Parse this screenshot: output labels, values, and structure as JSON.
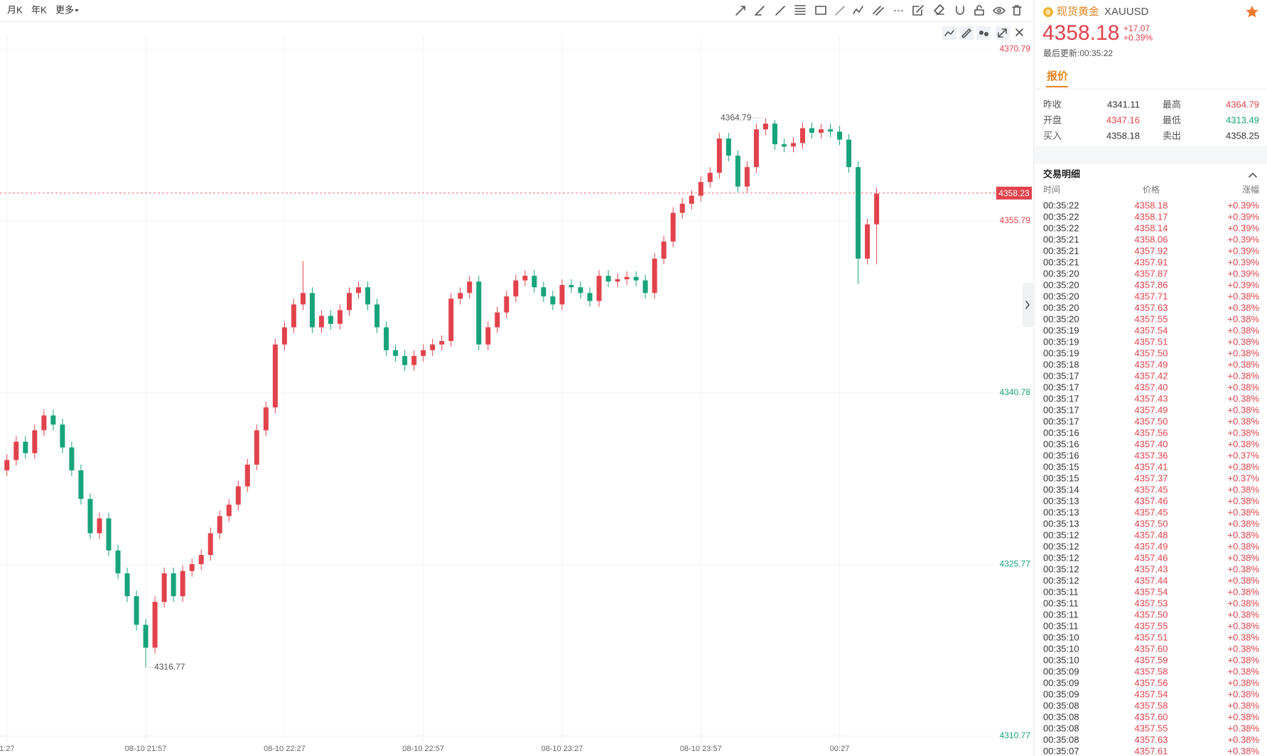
{
  "toolbar": {
    "periods": [
      "月K",
      "年K"
    ],
    "more": "更多"
  },
  "chart_data": {
    "type": "candlestick",
    "open": [
      4334.0,
      4334.9,
      4336.5,
      4335.5,
      4337.5,
      4338.8,
      4338.0,
      4336.0,
      4334.0,
      4331.5,
      4328.5,
      4329.8,
      4327.0,
      4325.0,
      4323.0,
      4320.5,
      4318.5,
      4322.5,
      4325.0,
      4323.0,
      4325.2,
      4325.8,
      4326.6,
      4328.5,
      4330.0,
      4331.0,
      4332.6,
      4334.5,
      4337.5,
      4339.5,
      4345.0,
      4346.5,
      4348.5,
      4349.5,
      4346.5,
      4347.5,
      4346.8,
      4348.0,
      4349.5,
      4350.0,
      4348.5,
      4346.5,
      4344.5,
      4344.0,
      4343.2,
      4344.0,
      4344.5,
      4345.0,
      4345.3,
      4349.0,
      4349.5,
      4350.5,
      4345.0,
      4346.5,
      4347.8,
      4349.2,
      4350.6,
      4351.0,
      4350.0,
      4349.2,
      4348.5,
      4350.2,
      4350.0,
      4349.5,
      4348.8,
      4351.0,
      4350.5,
      4350.7,
      4350.9,
      4350.6,
      4349.5,
      4352.5,
      4354.0,
      4356.5,
      4357.3,
      4358.0,
      4359.2,
      4360.0,
      4363.0,
      4361.5,
      4358.8,
      4360.5,
      4363.8,
      4364.3,
      4362.5,
      4362.3,
      4362.6,
      4363.9,
      4363.5,
      4363.8,
      4363.6,
      4362.9,
      4360.5,
      4352.5,
      4355.5
    ],
    "high": [
      4335.4,
      4337.0,
      4337.0,
      4338.0,
      4339.3,
      4339.3,
      4338.5,
      4336.5,
      4334.5,
      4332.0,
      4330.3,
      4330.3,
      4327.5,
      4325.5,
      4323.5,
      4321.0,
      4323.0,
      4325.5,
      4325.5,
      4325.7,
      4326.3,
      4327.1,
      4329.0,
      4330.5,
      4331.5,
      4333.1,
      4335.0,
      4338.0,
      4340.0,
      4345.5,
      4347.0,
      4349.0,
      4352.3,
      4350.0,
      4348.0,
      4348.0,
      4348.5,
      4350.0,
      4350.5,
      4350.5,
      4349.0,
      4347.0,
      4345.0,
      4344.5,
      4344.5,
      4345.0,
      4345.5,
      4345.8,
      4349.5,
      4350.0,
      4351.0,
      4351.0,
      4347.0,
      4348.3,
      4349.7,
      4351.1,
      4351.5,
      4351.5,
      4350.5,
      4349.7,
      4350.7,
      4350.7,
      4350.5,
      4350.0,
      4351.5,
      4351.5,
      4351.2,
      4351.4,
      4351.4,
      4351.1,
      4353.0,
      4354.5,
      4357.0,
      4357.8,
      4358.5,
      4359.7,
      4360.5,
      4363.5,
      4363.5,
      4362.0,
      4361.0,
      4364.3,
      4364.79,
      4364.6,
      4363.0,
      4363.1,
      4364.4,
      4364.4,
      4364.3,
      4364.3,
      4364.1,
      4363.4,
      4361.0,
      4356.0,
      4358.7
    ],
    "low": [
      4333.5,
      4334.4,
      4335.0,
      4335.0,
      4337.0,
      4337.5,
      4335.5,
      4333.5,
      4331.0,
      4328.0,
      4328.0,
      4326.5,
      4324.5,
      4322.5,
      4320.0,
      4316.77,
      4318.0,
      4322.0,
      4322.5,
      4322.5,
      4324.7,
      4325.3,
      4326.1,
      4328.0,
      4329.5,
      4330.5,
      4332.1,
      4334.0,
      4337.0,
      4339.0,
      4344.5,
      4346.0,
      4348.0,
      4346.0,
      4346.0,
      4346.3,
      4346.3,
      4347.5,
      4349.0,
      4348.0,
      4346.0,
      4344.0,
      4343.5,
      4342.7,
      4342.7,
      4343.5,
      4344.0,
      4344.5,
      4344.8,
      4348.5,
      4349.0,
      4344.5,
      4344.5,
      4346.0,
      4347.3,
      4348.7,
      4350.1,
      4349.5,
      4348.7,
      4348.0,
      4348.0,
      4349.5,
      4349.0,
      4348.3,
      4348.3,
      4350.0,
      4350.0,
      4350.2,
      4350.1,
      4349.0,
      4349.0,
      4352.0,
      4353.5,
      4356.0,
      4356.8,
      4357.5,
      4358.7,
      4359.5,
      4361.0,
      4358.3,
      4358.3,
      4360.0,
      4363.3,
      4362.0,
      4361.8,
      4361.8,
      4362.1,
      4363.0,
      4363.0,
      4363.1,
      4362.4,
      4360.0,
      4350.3,
      4352.0,
      4352.0
    ],
    "close": [
      4334.9,
      4336.5,
      4335.5,
      4337.5,
      4338.8,
      4338.0,
      4336.0,
      4334.0,
      4331.5,
      4328.5,
      4329.8,
      4327.0,
      4325.0,
      4323.0,
      4320.5,
      4318.5,
      4322.5,
      4325.0,
      4323.0,
      4325.2,
      4325.8,
      4326.6,
      4328.5,
      4330.0,
      4331.0,
      4332.6,
      4334.5,
      4337.5,
      4339.5,
      4345.0,
      4346.5,
      4348.5,
      4349.5,
      4346.5,
      4347.5,
      4346.8,
      4348.0,
      4349.5,
      4350.0,
      4348.5,
      4346.5,
      4344.5,
      4344.0,
      4343.2,
      4344.0,
      4344.5,
      4345.0,
      4345.3,
      4349.0,
      4349.5,
      4350.5,
      4345.0,
      4346.5,
      4347.8,
      4349.2,
      4350.6,
      4351.0,
      4350.0,
      4349.2,
      4348.5,
      4350.2,
      4350.0,
      4349.5,
      4348.8,
      4351.0,
      4350.5,
      4350.7,
      4350.9,
      4350.6,
      4349.5,
      4352.5,
      4354.0,
      4356.5,
      4357.3,
      4358.0,
      4359.2,
      4360.0,
      4363.0,
      4361.5,
      4358.8,
      4360.5,
      4363.8,
      4364.3,
      4362.5,
      4362.3,
      4362.6,
      4363.9,
      4363.5,
      4363.8,
      4363.6,
      4362.9,
      4360.5,
      4352.5,
      4355.5,
      4358.18
    ],
    "up_color": "#e2424c",
    "down_color": "#17a37b",
    "xlim": [
      -0.75,
      106.7
    ],
    "xticks": [
      {
        "value": 0,
        "label": "1:27"
      },
      {
        "value": 15,
        "label": "08-10 21:57"
      },
      {
        "value": 30,
        "label": "08-10 22:27"
      },
      {
        "value": 45,
        "label": "08-10 22:57"
      },
      {
        "value": 60,
        "label": "08-10 23:27"
      },
      {
        "value": 75,
        "label": "08-10 23:57"
      },
      {
        "value": 90,
        "label": "00:27"
      }
    ],
    "ylim": [
      4310.3,
      4372
    ],
    "yticks": [
      4310.77,
      4325.77,
      4340.78,
      4355.79,
      4370.79
    ],
    "ytick_colors": [
      "#17a37b",
      "#17a37b",
      "#17a37b",
      "#e2424c",
      "#e2424c"
    ],
    "grid": true,
    "last_price": 4358.23,
    "max_label": 4364.79,
    "min_label": 4316.77
  },
  "panel": {
    "name": "现货黄金",
    "symbol": "XAUUSD",
    "price": "4358.18",
    "change": "+17.07",
    "change_pct": "+0.39%",
    "updated": "最后更新:00:35:22",
    "tab": "报价",
    "quotes": [
      [
        "昨收",
        "4341.11",
        "最高",
        "4364.79"
      ],
      [
        "开盘",
        "4347.16",
        "最低",
        "4313.49"
      ],
      [
        "买入",
        "4358.18",
        "卖出",
        "4358.25"
      ]
    ],
    "trades_title": "交易明细",
    "trades_headers": [
      "时间",
      "价格",
      "涨幅"
    ],
    "trades": [
      [
        "00:35:22",
        "4358.18",
        "+0.39%"
      ],
      [
        "00:35:22",
        "4358.17",
        "+0.39%"
      ],
      [
        "00:35:22",
        "4358.14",
        "+0.39%"
      ],
      [
        "00:35:21",
        "4358.06",
        "+0.39%"
      ],
      [
        "00:35:21",
        "4357.92",
        "+0.39%"
      ],
      [
        "00:35:21",
        "4357.91",
        "+0.39%"
      ],
      [
        "00:35:20",
        "4357.87",
        "+0.39%"
      ],
      [
        "00:35:20",
        "4357.86",
        "+0.39%"
      ],
      [
        "00:35:20",
        "4357.71",
        "+0.38%"
      ],
      [
        "00:35:20",
        "4357.63",
        "+0.38%"
      ],
      [
        "00:35:20",
        "4357.55",
        "+0.38%"
      ],
      [
        "00:35:19",
        "4357.54",
        "+0.38%"
      ],
      [
        "00:35:19",
        "4357.51",
        "+0.38%"
      ],
      [
        "00:35:19",
        "4357.50",
        "+0.38%"
      ],
      [
        "00:35:18",
        "4357.49",
        "+0.38%"
      ],
      [
        "00:35:17",
        "4357.42",
        "+0.38%"
      ],
      [
        "00:35:17",
        "4357.40",
        "+0.38%"
      ],
      [
        "00:35:17",
        "4357.43",
        "+0.38%"
      ],
      [
        "00:35:17",
        "4357.49",
        "+0.38%"
      ],
      [
        "00:35:17",
        "4357.50",
        "+0.38%"
      ],
      [
        "00:35:16",
        "4357.56",
        "+0.38%"
      ],
      [
        "00:35:16",
        "4357.40",
        "+0.38%"
      ],
      [
        "00:35:16",
        "4357.36",
        "+0.37%"
      ],
      [
        "00:35:15",
        "4357.41",
        "+0.38%"
      ],
      [
        "00:35:15",
        "4357.37",
        "+0.37%"
      ],
      [
        "00:35:14",
        "4357.45",
        "+0.38%"
      ],
      [
        "00:35:13",
        "4357.46",
        "+0.38%"
      ],
      [
        "00:35:13",
        "4357.45",
        "+0.38%"
      ],
      [
        "00:35:13",
        "4357.50",
        "+0.38%"
      ],
      [
        "00:35:12",
        "4357.48",
        "+0.38%"
      ],
      [
        "00:35:12",
        "4357.49",
        "+0.38%"
      ],
      [
        "00:35:12",
        "4357.46",
        "+0.38%"
      ],
      [
        "00:35:12",
        "4357.43",
        "+0.38%"
      ],
      [
        "00:35:12",
        "4357.44",
        "+0.38%"
      ],
      [
        "00:35:11",
        "4357.54",
        "+0.38%"
      ],
      [
        "00:35:11",
        "4357.53",
        "+0.38%"
      ],
      [
        "00:35:11",
        "4357.50",
        "+0.38%"
      ],
      [
        "00:35:11",
        "4357.55",
        "+0.38%"
      ],
      [
        "00:35:10",
        "4357.51",
        "+0.38%"
      ],
      [
        "00:35:10",
        "4357.60",
        "+0.38%"
      ],
      [
        "00:35:10",
        "4357.59",
        "+0.38%"
      ],
      [
        "00:35:09",
        "4357.58",
        "+0.38%"
      ],
      [
        "00:35:09",
        "4357.56",
        "+0.38%"
      ],
      [
        "00:35:09",
        "4357.54",
        "+0.38%"
      ],
      [
        "00:35:08",
        "4357.58",
        "+0.38%"
      ],
      [
        "00:35:08",
        "4357.60",
        "+0.38%"
      ],
      [
        "00:35:08",
        "4357.55",
        "+0.38%"
      ],
      [
        "00:35:08",
        "4357.63",
        "+0.38%"
      ],
      [
        "00:35:07",
        "4357.61",
        "+0.38%"
      ]
    ]
  }
}
